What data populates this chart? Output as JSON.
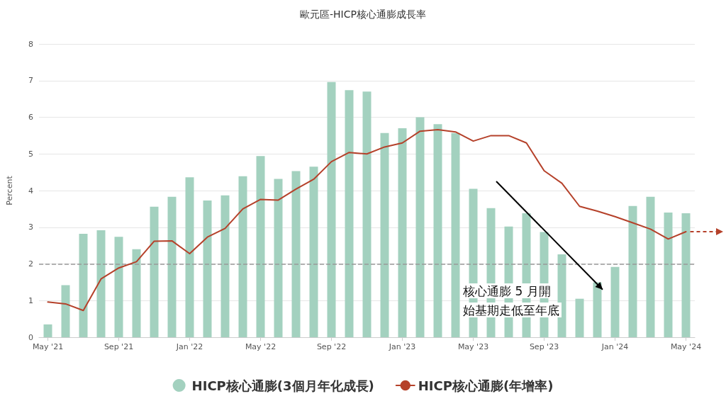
{
  "chart_data": {
    "type": "bar",
    "title": "歐元區-HICP核心通膨成長率",
    "ylabel": "Percent",
    "categories": [
      "May '21",
      null,
      null,
      null,
      "Sep '21",
      null,
      null,
      null,
      "Jan '22",
      null,
      null,
      null,
      "May '22",
      null,
      null,
      null,
      "Sep '22",
      null,
      null,
      null,
      "Jan '23",
      null,
      null,
      null,
      "May '23",
      null,
      null,
      null,
      "Sep '23",
      null,
      null,
      null,
      "Jan '24",
      null,
      null,
      null,
      "May '24"
    ],
    "series": [
      {
        "name": "HICP核心通膨(3個月年化成長)",
        "color": "#a3d1bf",
        "values": [
          0.35,
          1.42,
          2.82,
          2.92,
          2.74,
          2.4,
          3.56,
          3.83,
          4.36,
          3.73,
          3.87,
          4.39,
          4.94,
          4.32,
          4.53,
          4.65,
          6.96,
          6.74,
          6.7,
          5.57,
          5.7,
          6.0,
          5.81,
          5.57,
          4.05,
          3.52,
          3.02,
          3.38,
          2.87,
          2.26,
          1.05,
          1.5,
          1.92,
          3.58,
          3.83,
          3.4,
          3.38
        ]
      },
      {
        "name": "HICP核心通膨(年增率)",
        "type": "line",
        "color": "#b5412a",
        "values": [
          0.96,
          0.91,
          0.73,
          1.59,
          1.89,
          2.06,
          2.62,
          2.63,
          2.28,
          2.73,
          2.97,
          3.5,
          3.76,
          3.74,
          4.04,
          4.31,
          4.79,
          5.04,
          5.0,
          5.19,
          5.3,
          5.62,
          5.66,
          5.6,
          5.35,
          5.5,
          5.5,
          5.3,
          4.54,
          4.2,
          3.57,
          3.44,
          3.29,
          3.12,
          2.95,
          2.68,
          2.88
        ]
      }
    ],
    "ylim": [
      0,
      8
    ],
    "yticks": [
      0,
      1,
      2,
      3,
      4,
      5,
      6,
      7,
      8
    ],
    "grid": "y",
    "legend": "bottom",
    "marker": "none",
    "line_style": "solid",
    "ref_lines": [
      {
        "axis": "y",
        "value": 2,
        "color": "#999999",
        "line_style": "dashed"
      }
    ],
    "annotations": [
      "核心通膨 5 月開",
      "始基期走低至年底"
    ]
  }
}
